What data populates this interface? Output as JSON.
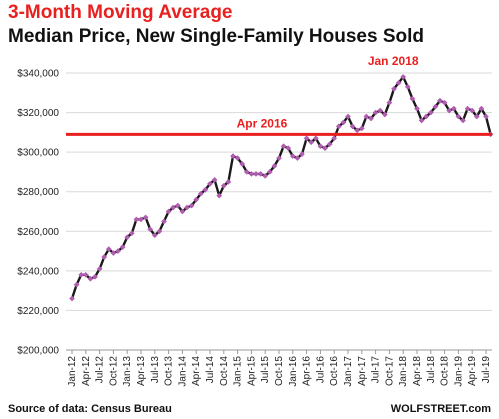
{
  "title": "3-Month Moving Average",
  "subtitle": "Median Price, New Single-Family Houses Sold",
  "source": "Source of data: Census Bureau",
  "brand": "WOLFSTREET.com",
  "colors": {
    "title": "#e8201f",
    "line": "#1a1a1a",
    "marker": "#b05cb0",
    "refline": "#e8201f",
    "grid": "#d9d9d9"
  },
  "chart_data": {
    "type": "line",
    "x_start": "Jan-12",
    "x_labels": [
      "Jan-12",
      "Apr-12",
      "Jul-12",
      "Oct-12",
      "Jan-13",
      "Apr-13",
      "Jul-13",
      "Oct-13",
      "Jan-14",
      "Apr-14",
      "Jul-14",
      "Oct-14",
      "Jan-15",
      "Apr-15",
      "Jul-15",
      "Oct-15",
      "Jan-16",
      "Apr-16",
      "Jul-16",
      "Oct-16",
      "Jan-17",
      "Apr-17",
      "Jul-17",
      "Oct-17",
      "Jan-18",
      "Apr-18",
      "Jul-18",
      "Oct-18",
      "Jan-19",
      "Apr-19",
      "Jul-19"
    ],
    "y_ticks": [
      "$200,000",
      "$220,000",
      "$240,000",
      "$260,000",
      "$280,000",
      "$300,000",
      "$320,000",
      "$340,000"
    ],
    "ylim": [
      200000,
      340000
    ],
    "grid": true,
    "series": [
      {
        "values": [
          226000,
          233000,
          238000,
          238000,
          236000,
          237000,
          241000,
          247000,
          251000,
          249000,
          250000,
          252000,
          257000,
          259000,
          266000,
          266000,
          267000,
          261000,
          258000,
          260000,
          265000,
          270000,
          272000,
          273000,
          270000,
          272000,
          273000,
          276000,
          279000,
          281000,
          284000,
          286000,
          278000,
          283000,
          285000,
          298000,
          297000,
          294000,
          290000,
          289000,
          289000,
          289000,
          288000,
          290000,
          293000,
          297000,
          303000,
          302000,
          298000,
          297000,
          299000,
          307000,
          305000,
          307000,
          303000,
          302000,
          304000,
          307000,
          313000,
          315000,
          318000,
          313000,
          311000,
          312000,
          318000,
          317000,
          320000,
          321000,
          319000,
          325000,
          332000,
          335000,
          338000,
          333000,
          327000,
          322000,
          316000,
          318000,
          320000,
          323000,
          326000,
          325000,
          321000,
          322000,
          318000,
          316000,
          322000,
          321000,
          318000,
          322000,
          318000,
          309000
        ]
      }
    ],
    "reference_line": {
      "value": 309000
    },
    "annotations": [
      {
        "text": "Jan 2018",
        "point_label": "Jan-18"
      },
      {
        "text": "Apr 2016",
        "point_label": "Apr-16"
      }
    ]
  }
}
